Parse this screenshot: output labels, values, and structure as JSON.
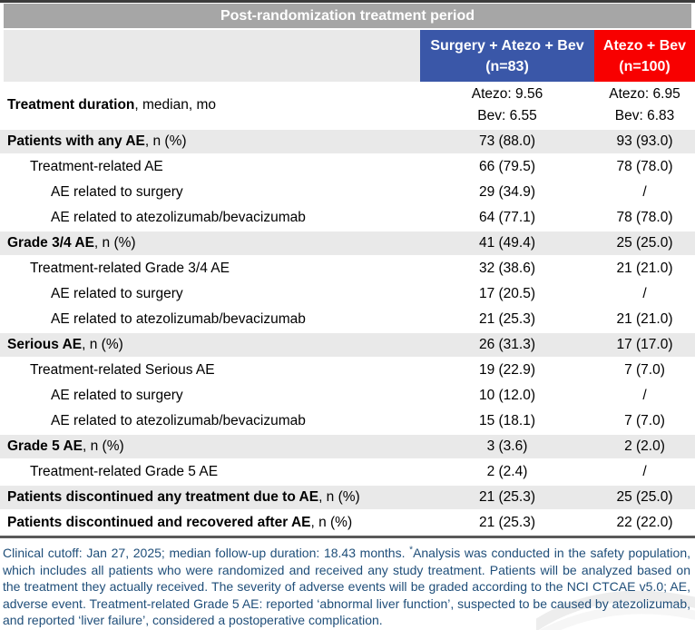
{
  "title_bar": {
    "label": "Post-randomization treatment period"
  },
  "colors": {
    "title_bar_bg": "#a6a6a6",
    "section_row_bg": "#e9e9e9",
    "surgery_arm_bg": "#3a57a8",
    "control_arm_bg": "#f80000",
    "footnote_text": "#1f4e79",
    "top_border": "#3b3b3b",
    "bottom_border": "#595959"
  },
  "header": {
    "surgery_arm": {
      "line1": "Surgery + Atezo + Bev",
      "line2": "(n=83)"
    },
    "control_arm": {
      "line1": "Atezo + Bev",
      "line2": "(n=100)"
    }
  },
  "table": {
    "rows": [
      {
        "indent": 0,
        "bold": "Treatment duration",
        "rest": ", median, mo",
        "c1": [
          "Atezo: 9.56",
          "Bev: 6.55"
        ],
        "c2": [
          "Atezo: 6.95",
          "Bev: 6.83"
        ],
        "shaded": false,
        "tall": true
      },
      {
        "indent": 0,
        "bold": "Patients with any AE",
        "rest": ", n (%)",
        "c1": "73 (88.0)",
        "c2": "93 (93.0)",
        "shaded": true
      },
      {
        "indent": 1,
        "bold": "",
        "rest": "Treatment-related AE",
        "c1": "66 (79.5)",
        "c2": "78 (78.0)",
        "shaded": false
      },
      {
        "indent": 2,
        "bold": "",
        "rest": "AE related to surgery",
        "c1": "29 (34.9)",
        "c2": "/",
        "shaded": false
      },
      {
        "indent": 2,
        "bold": "",
        "rest": "AE related to atezolizumab/bevacizumab",
        "c1": "64 (77.1)",
        "c2": "78 (78.0)",
        "shaded": false
      },
      {
        "indent": 0,
        "bold": "Grade 3/4 AE",
        "rest": ", n (%)",
        "c1": "41 (49.4)",
        "c2": "25 (25.0)",
        "shaded": true
      },
      {
        "indent": 1,
        "bold": "",
        "rest": "Treatment-related Grade 3/4 AE",
        "c1": "32 (38.6)",
        "c2": "21 (21.0)",
        "shaded": false
      },
      {
        "indent": 2,
        "bold": "",
        "rest": "AE related to surgery",
        "c1": "17 (20.5)",
        "c2": "/",
        "shaded": false
      },
      {
        "indent": 2,
        "bold": "",
        "rest": "AE related to atezolizumab/bevacizumab",
        "c1": "21 (25.3)",
        "c2": "21 (21.0)",
        "shaded": false
      },
      {
        "indent": 0,
        "bold": "Serious AE",
        "rest": ", n (%)",
        "c1": "26 (31.3)",
        "c2": "17 (17.0)",
        "shaded": true
      },
      {
        "indent": 1,
        "bold": "",
        "rest": "Treatment-related Serious AE",
        "c1": "19 (22.9)",
        "c2": "7 (7.0)",
        "shaded": false
      },
      {
        "indent": 2,
        "bold": "",
        "rest": "AE related to surgery",
        "c1": "10 (12.0)",
        "c2": "/",
        "shaded": false
      },
      {
        "indent": 2,
        "bold": "",
        "rest": "AE related to atezolizumab/bevacizumab",
        "c1": "15 (18.1)",
        "c2": "7 (7.0)",
        "shaded": false
      },
      {
        "indent": 0,
        "bold": "Grade 5 AE",
        "rest": ", n (%)",
        "c1": "3 (3.6)",
        "c2": "2 (2.0)",
        "shaded": true
      },
      {
        "indent": 1,
        "bold": "",
        "rest": "Treatment-related Grade 5 AE",
        "c1": "2 (2.4)",
        "c2": "/",
        "shaded": false
      },
      {
        "indent": 0,
        "bold": "Patients discontinued any treatment due to AE",
        "rest": ", n (%)",
        "c1": "21 (25.3)",
        "c2": "25 (25.0)",
        "shaded": true
      },
      {
        "indent": 0,
        "bold": "Patients discontinued and recovered after AE",
        "rest": ", n (%)",
        "c1": "21 (25.3)",
        "c2": "22 (22.0)",
        "shaded": false
      }
    ]
  },
  "footnote": {
    "pre": "Clinical cutoff: Jan 27, 2025; median follow-up duration: 18.43 months. ",
    "sup": "*",
    "post": "Analysis was conducted in the safety population, which includes all patients who were randomized and received any study treatment. Patients will be analyzed based on the treatment they actually received. The severity of adverse events will be graded according to the NCI CTCAE v5.0; AE, adverse event. Treatment-related Grade 5 AE: reported ‘abnormal liver function’, suspected to be caused by atezolizumab, and reported ‘liver failure’, considered a postoperative complication."
  }
}
